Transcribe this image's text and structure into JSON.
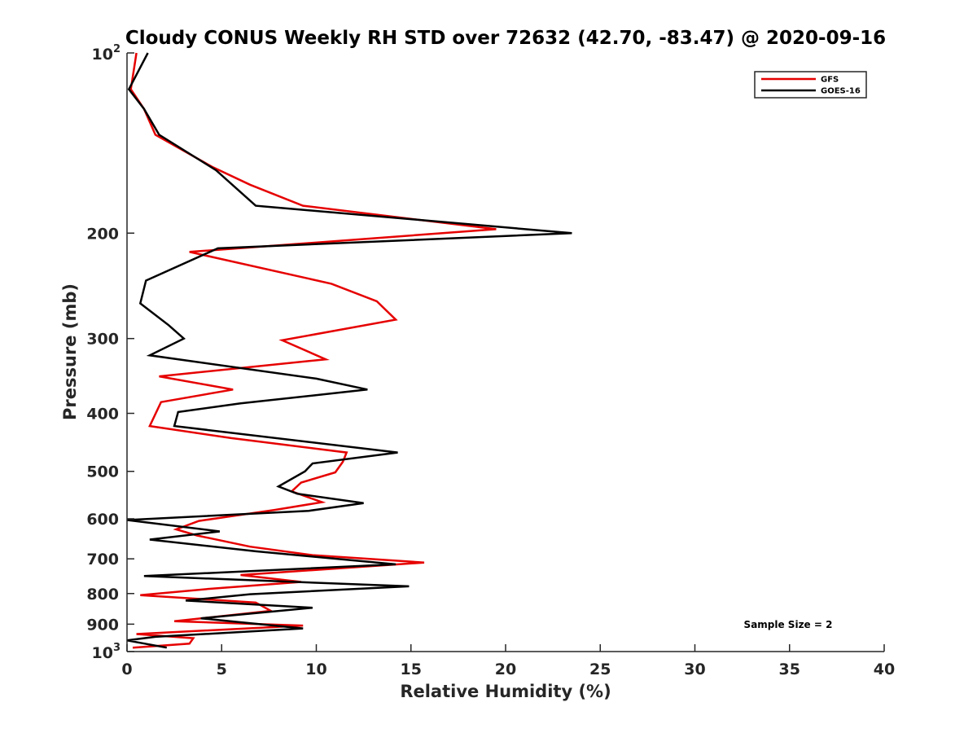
{
  "chart_data": {
    "type": "line",
    "title": "Cloudy CONUS Weekly RH STD over 72632 (42.70, -83.47) @ 2020-09-16",
    "xlabel": "Relative Humidity (%)",
    "ylabel": "Pressure (mb)",
    "xlim": [
      0,
      40
    ],
    "ylim": [
      100,
      1000
    ],
    "y_scale": "log",
    "y_reversed": true,
    "grid": false,
    "legend_position": "top-right",
    "x_ticks": [
      {
        "value": 0,
        "label": "0"
      },
      {
        "value": 5,
        "label": "5"
      },
      {
        "value": 10,
        "label": "10"
      },
      {
        "value": 15,
        "label": "15"
      },
      {
        "value": 20,
        "label": "20"
      },
      {
        "value": 25,
        "label": "25"
      },
      {
        "value": 30,
        "label": "30"
      },
      {
        "value": 35,
        "label": "35"
      },
      {
        "value": 40,
        "label": "40"
      }
    ],
    "y_ticks": [
      {
        "value": 100,
        "base": "10",
        "exp": "2"
      },
      {
        "value": 200,
        "base": "200",
        "exp": ""
      },
      {
        "value": 300,
        "base": "300",
        "exp": ""
      },
      {
        "value": 400,
        "base": "400",
        "exp": ""
      },
      {
        "value": 500,
        "base": "500",
        "exp": ""
      },
      {
        "value": 600,
        "base": "600",
        "exp": ""
      },
      {
        "value": 700,
        "base": "700",
        "exp": ""
      },
      {
        "value": 800,
        "base": "800",
        "exp": ""
      },
      {
        "value": 900,
        "base": "900",
        "exp": ""
      },
      {
        "value": 1000,
        "base": "10",
        "exp": "3"
      }
    ],
    "series": [
      {
        "name": "GFS",
        "color": "#e60000",
        "points": [
          [
            0.5,
            100
          ],
          [
            0.2,
            115
          ],
          [
            0.9,
            124
          ],
          [
            1.5,
            137
          ],
          [
            4.5,
            155
          ],
          [
            6.5,
            166
          ],
          [
            9.3,
            180
          ],
          [
            19.5,
            197
          ],
          [
            3.3,
            215
          ],
          [
            10.8,
            243
          ],
          [
            13.2,
            260
          ],
          [
            14.2,
            279
          ],
          [
            8.2,
            302
          ],
          [
            10.5,
            325
          ],
          [
            1.7,
            347
          ],
          [
            5.6,
            365
          ],
          [
            1.8,
            383
          ],
          [
            1.2,
            420
          ],
          [
            5.5,
            440
          ],
          [
            11.6,
            465
          ],
          [
            11.4,
            482
          ],
          [
            11.0,
            502
          ],
          [
            9.2,
            522
          ],
          [
            8.7,
            540
          ],
          [
            10.3,
            563
          ],
          [
            7.8,
            580
          ],
          [
            3.8,
            605
          ],
          [
            2.6,
            625
          ],
          [
            3.7,
            640
          ],
          [
            6.5,
            668
          ],
          [
            9.8,
            690
          ],
          [
            15.7,
            710
          ],
          [
            6.0,
            745
          ],
          [
            9.2,
            765
          ],
          [
            4.5,
            785
          ],
          [
            0.7,
            805
          ],
          [
            6.8,
            828
          ],
          [
            7.6,
            855
          ],
          [
            2.5,
            890
          ],
          [
            9.3,
            905
          ],
          [
            0.5,
            935
          ],
          [
            3.5,
            950
          ],
          [
            3.3,
            970
          ],
          [
            0.3,
            985
          ]
        ]
      },
      {
        "name": "GOES-16",
        "color": "#000000",
        "points": [
          [
            1.1,
            100
          ],
          [
            0.1,
            115
          ],
          [
            0.9,
            124
          ],
          [
            1.7,
            137
          ],
          [
            4.7,
            157
          ],
          [
            6.8,
            180
          ],
          [
            23.5,
            200
          ],
          [
            4.8,
            212
          ],
          [
            1.0,
            240
          ],
          [
            0.7,
            262
          ],
          [
            2.2,
            285
          ],
          [
            3.0,
            300
          ],
          [
            1.2,
            320
          ],
          [
            10.0,
            350
          ],
          [
            12.7,
            365
          ],
          [
            6.0,
            385
          ],
          [
            2.7,
            398
          ],
          [
            2.5,
            420
          ],
          [
            14.3,
            465
          ],
          [
            9.8,
            485
          ],
          [
            9.4,
            500
          ],
          [
            8.0,
            530
          ],
          [
            9.0,
            545
          ],
          [
            12.5,
            565
          ],
          [
            9.6,
            582
          ],
          [
            0.0,
            603
          ],
          [
            4.9,
            630
          ],
          [
            1.2,
            650
          ],
          [
            6.8,
            680
          ],
          [
            14.2,
            715
          ],
          [
            0.9,
            748
          ],
          [
            14.9,
            778
          ],
          [
            6.5,
            802
          ],
          [
            3.1,
            822
          ],
          [
            9.8,
            845
          ],
          [
            3.9,
            880
          ],
          [
            9.3,
            915
          ],
          [
            1.5,
            945
          ],
          [
            0.0,
            958
          ],
          [
            2.1,
            985
          ]
        ]
      }
    ],
    "annotation": "Sample Size = 2"
  }
}
